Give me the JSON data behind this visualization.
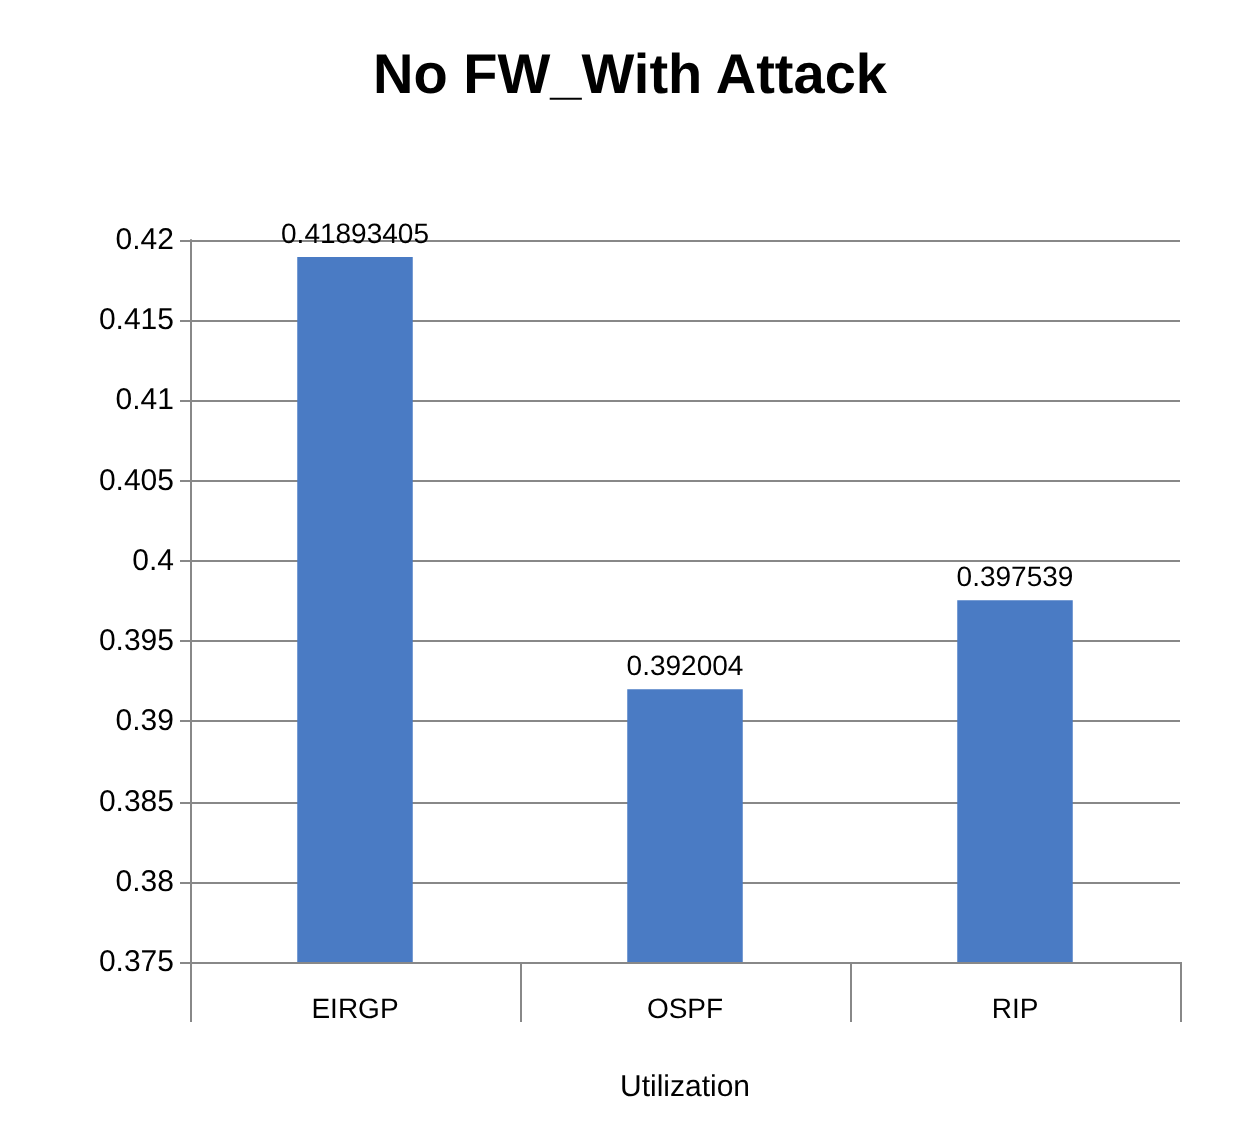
{
  "chart_data": {
    "type": "bar",
    "title": "No FW_With Attack",
    "xlabel": "Utilization",
    "categories": [
      "EIRGP",
      "OSPF",
      "RIP"
    ],
    "values": [
      0.41893405,
      0.392004,
      0.397539
    ],
    "color": "#4a7bc4",
    "data_labels": true,
    "ylim": [
      0.375,
      0.42
    ],
    "yticks": [
      0.375,
      0.38,
      0.385,
      0.39,
      0.395,
      0.4,
      0.405,
      0.41,
      0.415,
      0.42
    ],
    "grid": "y"
  }
}
